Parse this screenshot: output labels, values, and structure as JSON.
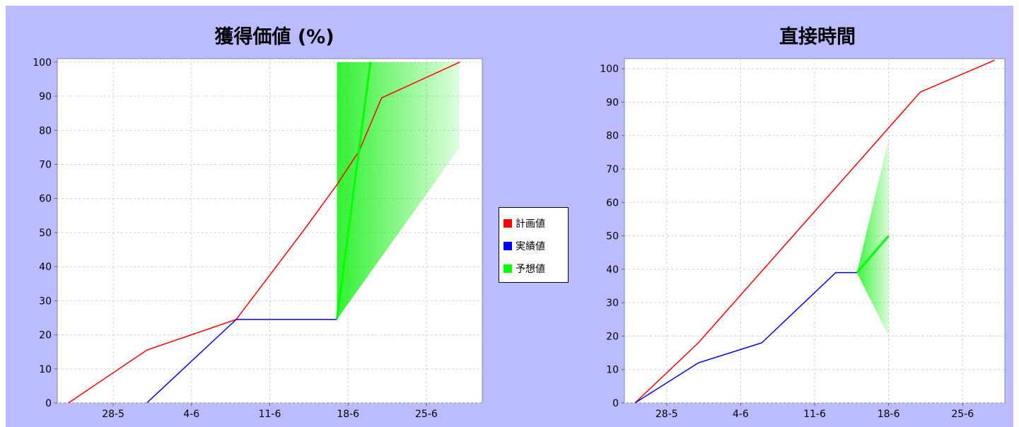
{
  "chart_data": [
    {
      "type": "line",
      "title": "獲得価値 (%)",
      "xlabel": "",
      "ylabel": "",
      "x_tick_labels": [
        "28-5",
        "4-6",
        "11-6",
        "18-6",
        "25-6"
      ],
      "y_ticks": [
        0,
        10,
        20,
        30,
        40,
        50,
        60,
        70,
        80,
        90,
        100
      ],
      "ylim": [
        0,
        101
      ],
      "grid": true,
      "legend_position": "right",
      "series": [
        {
          "name": "計画値",
          "color": "#ff0000",
          "points": [
            [
              "2012-05-24",
              0
            ],
            [
              "2012-05-31",
              15.5
            ],
            [
              "2012-06-08",
              24.5
            ],
            [
              "2012-06-14",
              50.5
            ],
            [
              "2012-06-17",
              64
            ],
            [
              "2012-06-19",
              74
            ],
            [
              "2012-06-21",
              89.5
            ],
            [
              "2012-06-28",
              100
            ]
          ]
        },
        {
          "name": "実績値",
          "color": "#0000ff",
          "points": [
            [
              "2012-05-31",
              0
            ],
            [
              "2012-06-08",
              24.5
            ],
            [
              "2012-06-17",
              24.5
            ]
          ]
        },
        {
          "name": "予想値",
          "color": "#00ff00",
          "points": [
            [
              "2012-06-17",
              24.5
            ],
            [
              "2012-06-20",
              100
            ]
          ],
          "range_upper": [
            [
              "2012-06-17",
              24.5
            ],
            [
              "2012-06-17",
              100
            ],
            [
              "2012-06-28",
              100
            ]
          ],
          "range_lower": [
            [
              "2012-06-17",
              24.5
            ],
            [
              "2012-06-28",
              75
            ]
          ]
        }
      ]
    },
    {
      "type": "line",
      "title": "直接時間",
      "xlabel": "",
      "ylabel": "",
      "x_tick_labels": [
        "28-5",
        "4-6",
        "11-6",
        "18-6",
        "25-6"
      ],
      "y_ticks": [
        0,
        10,
        20,
        30,
        40,
        50,
        60,
        70,
        80,
        90,
        100
      ],
      "ylim": [
        0,
        103
      ],
      "grid": true,
      "legend_position": "none",
      "series": [
        {
          "name": "計画値",
          "color": "#ff0000",
          "points": [
            [
              "2012-05-25",
              0
            ],
            [
              "2012-05-31",
              18
            ],
            [
              "2012-06-21",
              93
            ],
            [
              "2012-06-28",
              102.5
            ]
          ]
        },
        {
          "name": "実績値",
          "color": "#0000ff",
          "points": [
            [
              "2012-05-25",
              0
            ],
            [
              "2012-05-31",
              12
            ],
            [
              "2012-06-06",
              18
            ],
            [
              "2012-06-13",
              39
            ],
            [
              "2012-06-15",
              39
            ]
          ]
        },
        {
          "name": "予想値",
          "color": "#00ff00",
          "points": [
            [
              "2012-06-15",
              39
            ],
            [
              "2012-06-18",
              50
            ]
          ],
          "range_upper": [
            [
              "2012-06-15",
              39
            ],
            [
              "2012-06-18",
              79
            ]
          ],
          "range_lower": [
            [
              "2012-06-15",
              39
            ],
            [
              "2012-06-18",
              20
            ]
          ]
        }
      ]
    }
  ],
  "legend": {
    "items": [
      {
        "label": "計画値",
        "color": "#ff0000"
      },
      {
        "label": "実績値",
        "color": "#0000ff"
      },
      {
        "label": "予想値",
        "color": "#00ff00"
      }
    ]
  }
}
